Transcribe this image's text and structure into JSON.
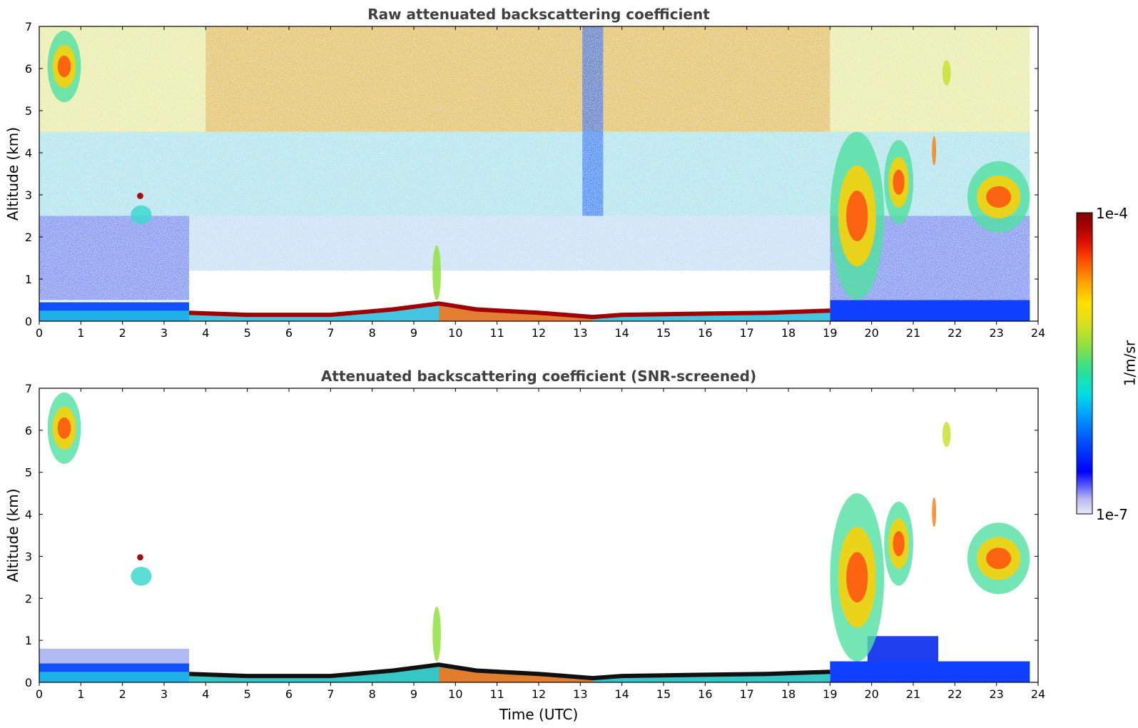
{
  "chart_data": [
    {
      "type": "heatmap",
      "title": "Raw attenuated backscattering coefficient",
      "xlabel": "",
      "ylabel": "Altitude (km)",
      "xlim": [
        0,
        24
      ],
      "ylim": [
        0,
        7
      ],
      "xticks": [
        "0",
        "1",
        "2",
        "3",
        "4",
        "5",
        "6",
        "7",
        "8",
        "9",
        "10",
        "11",
        "12",
        "13",
        "14",
        "15",
        "16",
        "17",
        "18",
        "19",
        "20",
        "21",
        "22",
        "23",
        "24"
      ],
      "yticks": [
        "0",
        "1",
        "2",
        "3",
        "4",
        "5",
        "6",
        "7"
      ],
      "screened": false,
      "boundary_layer_top_km": [
        [
          3.6,
          0.2
        ],
        [
          5,
          0.15
        ],
        [
          7,
          0.15
        ],
        [
          8.5,
          0.28
        ],
        [
          9.6,
          0.42
        ],
        [
          10.5,
          0.28
        ],
        [
          12,
          0.2
        ],
        [
          13.3,
          0.1
        ],
        [
          14,
          0.15
        ],
        [
          16,
          0.18
        ],
        [
          17.5,
          0.2
        ],
        [
          19,
          0.25
        ]
      ],
      "cloud_layers": [
        {
          "t_start": 0.2,
          "t_end": 1.0,
          "z_bottom": 5.2,
          "z_top": 6.9
        },
        {
          "t_start": 19.0,
          "t_end": 20.3,
          "z_bottom": 0.5,
          "z_top": 4.5
        },
        {
          "t_start": 20.3,
          "t_end": 21.0,
          "z_bottom": 2.3,
          "z_top": 4.3
        },
        {
          "t_start": 22.3,
          "t_end": 23.8,
          "z_bottom": 2.1,
          "z_top": 3.8
        }
      ]
    },
    {
      "type": "heatmap",
      "title": "Attenuated backscattering coefficient (SNR-screened)",
      "xlabel": "Time (UTC)",
      "ylabel": "Altitude (km)",
      "xlim": [
        0,
        24
      ],
      "ylim": [
        0,
        7
      ],
      "xticks": [
        "0",
        "1",
        "2",
        "3",
        "4",
        "5",
        "6",
        "7",
        "8",
        "9",
        "10",
        "11",
        "12",
        "13",
        "14",
        "15",
        "16",
        "17",
        "18",
        "19",
        "20",
        "21",
        "22",
        "23",
        "24"
      ],
      "yticks": [
        "0",
        "1",
        "2",
        "3",
        "4",
        "5",
        "6",
        "7"
      ],
      "screened": true
    }
  ],
  "colorbar": {
    "label": "1/m/sr",
    "max_label": "1e-4",
    "min_label": "1e-7",
    "scale": "log",
    "colormap": [
      "#e8e8f8",
      "#b8b8f0",
      "#6060ff",
      "#0000ff",
      "#0040ff",
      "#0080ff",
      "#00c0ff",
      "#00e0e0",
      "#20e090",
      "#80e040",
      "#d0e020",
      "#ffe000",
      "#ffa000",
      "#ff5000",
      "#e01000",
      "#a00000",
      "#800000"
    ]
  }
}
